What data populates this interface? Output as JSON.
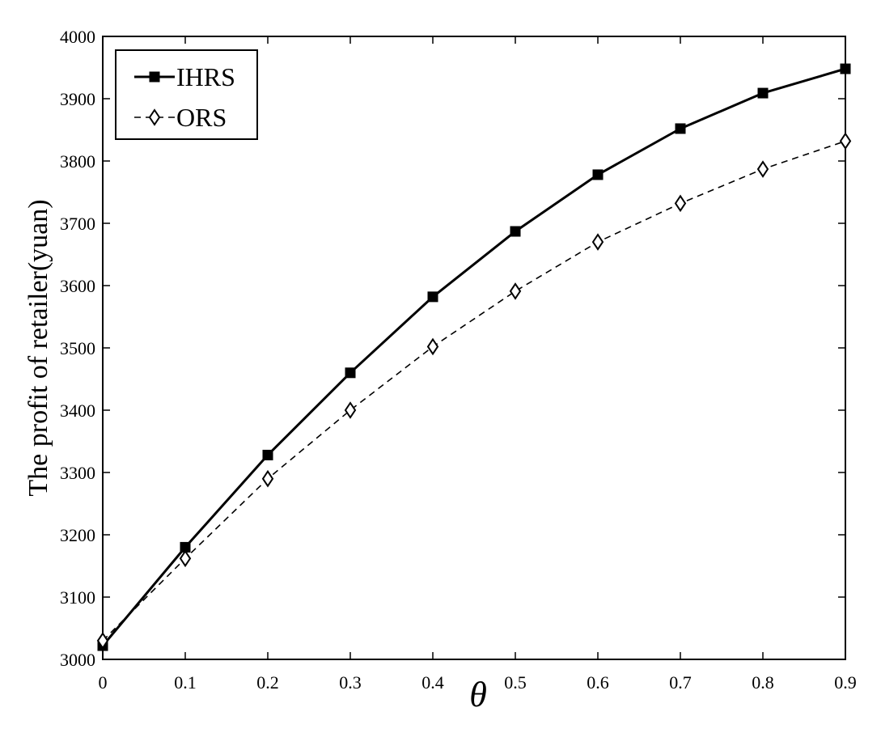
{
  "chart_data": {
    "type": "line",
    "xlabel": "θ",
    "ylabel": "The profit of retailer(yuan)",
    "x": [
      0,
      0.1,
      0.2,
      0.3,
      0.4,
      0.5,
      0.6,
      0.7,
      0.8,
      0.9
    ],
    "x_tick_labels": [
      "0",
      "0.1",
      "0.2",
      "0.3",
      "0.4",
      "0.5",
      "0.6",
      "0.7",
      "0.8",
      "0.9"
    ],
    "y_ticks": [
      3000,
      3100,
      3200,
      3300,
      3400,
      3500,
      3600,
      3700,
      3800,
      3900,
      4000
    ],
    "y_tick_labels": [
      "3000",
      "3100",
      "3200",
      "3300",
      "3400",
      "3500",
      "3600",
      "3700",
      "3800",
      "3900",
      "4000"
    ],
    "xlim": [
      0,
      0.9
    ],
    "ylim": [
      3000,
      4000
    ],
    "grid": false,
    "legend_position": "top-left",
    "series": [
      {
        "name": "IHRS",
        "marker": "square",
        "line_style": "solid",
        "color": "#000000",
        "values": [
          3022,
          3180,
          3328,
          3460,
          3582,
          3687,
          3778,
          3852,
          3909,
          3948
        ]
      },
      {
        "name": "ORS",
        "marker": "diamond",
        "line_style": "dashed",
        "color": "#000000",
        "values": [
          3030,
          3162,
          3290,
          3400,
          3502,
          3591,
          3670,
          3732,
          3787,
          3832
        ]
      }
    ]
  }
}
